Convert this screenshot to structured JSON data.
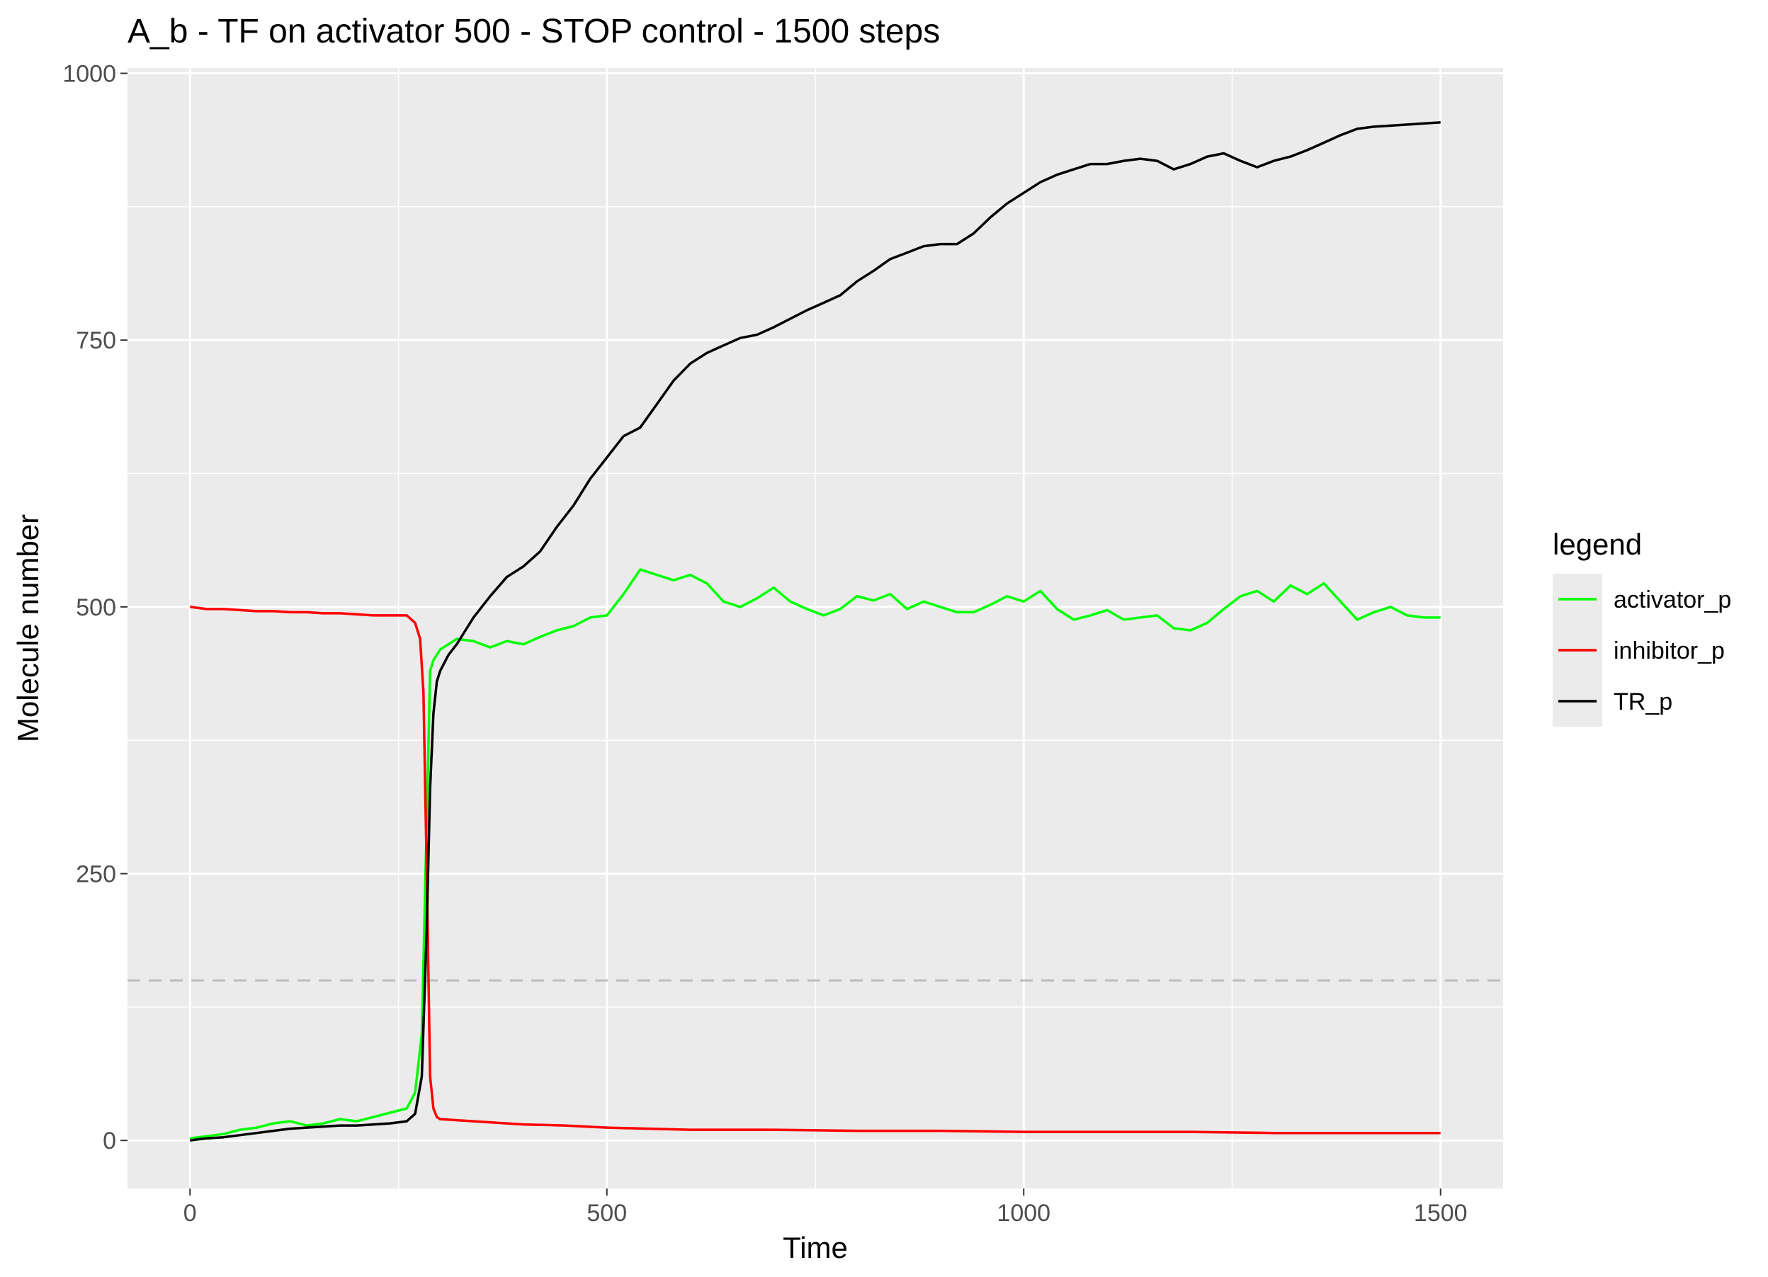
{
  "chart_data": {
    "type": "line",
    "title": "A_b - TF on activator 500 - STOP control - 1500 steps",
    "xlabel": "Time",
    "ylabel": "Molecule number",
    "xlim": [
      -75,
      1575
    ],
    "ylim": [
      -45,
      1005
    ],
    "xticks": [
      0,
      500,
      1000,
      1500
    ],
    "xtick_labels": [
      "0",
      "500",
      "1000",
      "1500"
    ],
    "yticks": [
      0,
      250,
      500,
      750,
      1000
    ],
    "ytick_labels": [
      "0",
      "250",
      "500",
      "750",
      "1000"
    ],
    "grid": true,
    "reference_line": {
      "y": 150,
      "style": "dashed",
      "color": "#bdbdbd"
    },
    "legend": {
      "title": "legend",
      "position": "right"
    },
    "series": [
      {
        "name": "activator_p",
        "color": "#00ff00",
        "x": [
          0,
          20,
          40,
          60,
          80,
          100,
          120,
          140,
          160,
          180,
          200,
          220,
          240,
          260,
          270,
          278,
          284,
          288,
          292,
          300,
          320,
          340,
          360,
          380,
          400,
          420,
          440,
          460,
          480,
          500,
          520,
          540,
          560,
          580,
          600,
          620,
          640,
          660,
          680,
          700,
          720,
          740,
          760,
          780,
          800,
          820,
          840,
          860,
          880,
          900,
          920,
          940,
          960,
          980,
          1000,
          1020,
          1040,
          1060,
          1080,
          1100,
          1120,
          1140,
          1160,
          1180,
          1200,
          1220,
          1240,
          1260,
          1280,
          1300,
          1320,
          1340,
          1360,
          1380,
          1400,
          1420,
          1440,
          1460,
          1480,
          1500
        ],
        "y": [
          2,
          4,
          6,
          10,
          12,
          16,
          18,
          14,
          16,
          20,
          18,
          22,
          26,
          30,
          45,
          100,
          300,
          440,
          450,
          460,
          470,
          468,
          462,
          468,
          465,
          472,
          478,
          482,
          490,
          492,
          512,
          535,
          530,
          525,
          530,
          522,
          505,
          500,
          508,
          518,
          505,
          498,
          492,
          498,
          510,
          506,
          512,
          498,
          505,
          500,
          495,
          495,
          502,
          510,
          505,
          515,
          498,
          488,
          492,
          497,
          488,
          490,
          492,
          480,
          478,
          485,
          498,
          510,
          515,
          505,
          520,
          512,
          522,
          505,
          488,
          495,
          500,
          492,
          490,
          490
        ]
      },
      {
        "name": "inhibitor_p",
        "color": "#ff0000",
        "x": [
          0,
          20,
          40,
          60,
          80,
          100,
          120,
          140,
          160,
          180,
          200,
          220,
          240,
          260,
          270,
          276,
          280,
          284,
          288,
          292,
          296,
          300,
          320,
          340,
          360,
          380,
          400,
          450,
          500,
          550,
          600,
          700,
          800,
          900,
          1000,
          1100,
          1200,
          1300,
          1400,
          1500
        ],
        "y": [
          500,
          498,
          498,
          497,
          496,
          496,
          495,
          495,
          494,
          494,
          493,
          492,
          492,
          492,
          485,
          470,
          420,
          250,
          60,
          30,
          22,
          20,
          19,
          18,
          17,
          16,
          15,
          14,
          12,
          11,
          10,
          10,
          9,
          9,
          8,
          8,
          8,
          7,
          7,
          7
        ]
      },
      {
        "name": "TR_p",
        "color": "#000000",
        "x": [
          0,
          20,
          40,
          60,
          80,
          100,
          120,
          140,
          160,
          180,
          200,
          220,
          240,
          260,
          270,
          278,
          284,
          288,
          292,
          296,
          300,
          310,
          320,
          340,
          360,
          380,
          400,
          420,
          440,
          460,
          480,
          500,
          520,
          540,
          560,
          580,
          600,
          620,
          640,
          660,
          680,
          700,
          720,
          740,
          760,
          780,
          800,
          820,
          840,
          860,
          880,
          900,
          920,
          940,
          960,
          980,
          1000,
          1020,
          1040,
          1060,
          1080,
          1100,
          1120,
          1140,
          1160,
          1180,
          1200,
          1220,
          1240,
          1260,
          1280,
          1300,
          1320,
          1340,
          1360,
          1380,
          1400,
          1420,
          1440,
          1460,
          1480,
          1500
        ],
        "y": [
          0,
          2,
          3,
          5,
          7,
          9,
          11,
          12,
          13,
          14,
          14,
          15,
          16,
          18,
          25,
          60,
          200,
          330,
          400,
          430,
          440,
          455,
          465,
          490,
          510,
          528,
          538,
          552,
          575,
          595,
          620,
          640,
          660,
          668,
          690,
          712,
          728,
          738,
          745,
          752,
          755,
          762,
          770,
          778,
          785,
          792,
          805,
          815,
          826,
          832,
          838,
          840,
          840,
          850,
          865,
          878,
          888,
          898,
          905,
          910,
          915,
          915,
          918,
          920,
          918,
          910,
          915,
          922,
          925,
          918,
          912,
          918,
          922,
          928,
          935,
          942,
          948,
          950,
          951,
          952,
          953,
          954
        ]
      }
    ]
  }
}
